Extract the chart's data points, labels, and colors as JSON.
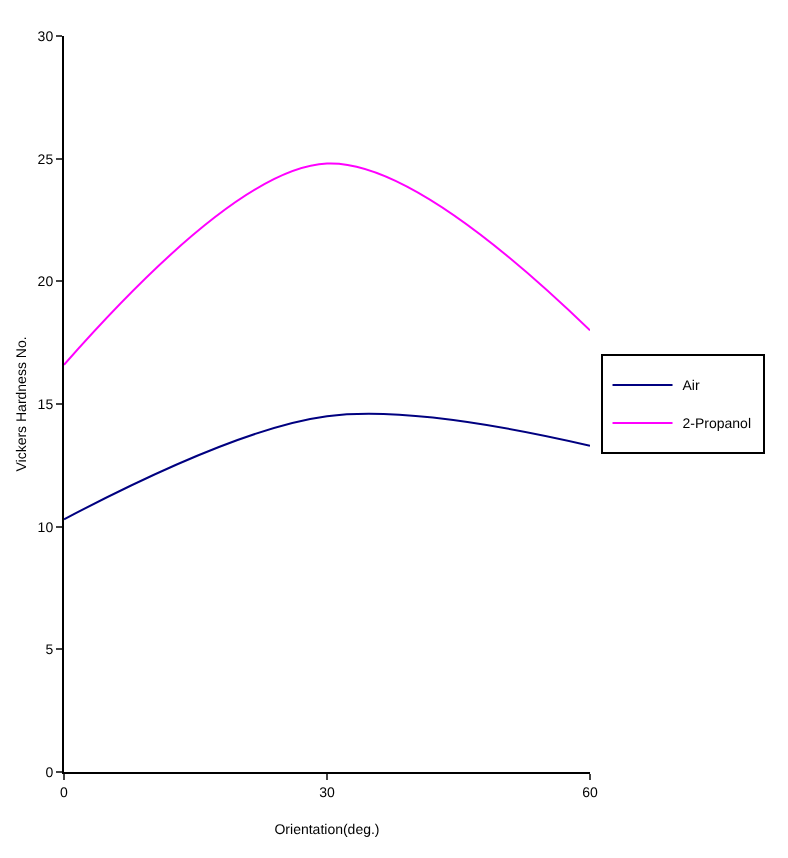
{
  "chart_data": {
    "type": "line",
    "xlabel": "Orientation(deg.)",
    "ylabel": "Vickers Hardness No.",
    "x": [
      0,
      30,
      60
    ],
    "series": [
      {
        "name": "Air",
        "color": "#000080",
        "values": [
          10.3,
          14.5,
          13.3
        ]
      },
      {
        "name": "2-Propanol",
        "color": "#ff00ff",
        "values": [
          16.6,
          24.8,
          18.0
        ]
      }
    ],
    "xlim": [
      0,
      60
    ],
    "xticks": [
      0,
      30,
      60
    ],
    "ylim": [
      0,
      30
    ],
    "yticks": [
      0,
      5,
      10,
      15,
      20,
      25,
      30
    ],
    "grid": false,
    "legend": "right",
    "marker": "none",
    "line_style": "solid"
  }
}
